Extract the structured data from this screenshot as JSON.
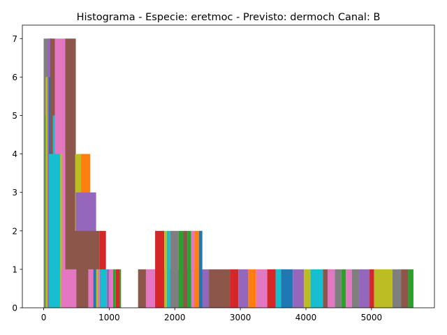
{
  "chart_data": {
    "type": "bar",
    "title": "Histograma - Especie: eretmoc - Previsto: dermoch Canal: B",
    "xlabel": "",
    "ylabel": "",
    "xlim": [
      -325,
      5960
    ],
    "ylim": [
      0,
      7.35
    ],
    "x_ticks": [
      {
        "value": 0,
        "label": "0"
      },
      {
        "value": 1000,
        "label": "1000"
      },
      {
        "value": 2000,
        "label": "2000"
      },
      {
        "value": 3000,
        "label": "3000"
      },
      {
        "value": 4000,
        "label": "4000"
      },
      {
        "value": 5000,
        "label": "5000"
      }
    ],
    "y_ticks": [
      {
        "value": 0,
        "label": "0"
      },
      {
        "value": 1,
        "label": "1"
      },
      {
        "value": 2,
        "label": "2"
      },
      {
        "value": 3,
        "label": "3"
      },
      {
        "value": 4,
        "label": "4"
      },
      {
        "value": 5,
        "label": "5"
      },
      {
        "value": 6,
        "label": "6"
      },
      {
        "value": 7,
        "label": "7"
      }
    ],
    "grid": false,
    "legend": "none",
    "colors": [
      "#1f77b4",
      "#ff7f0e",
      "#2ca02c",
      "#d62728",
      "#9467bd",
      "#8c564b",
      "#e377c2",
      "#7f7f7f",
      "#bcbd22",
      "#17becf"
    ],
    "bars": [
      {
        "x0": 0,
        "x1": 130,
        "y": 7,
        "color": "#7f7f7f"
      },
      {
        "x0": 20,
        "x1": 70,
        "y": 5,
        "color": "#2ca02c"
      },
      {
        "x0": 30,
        "x1": 120,
        "y": 6,
        "color": "#bcbd22"
      },
      {
        "x0": 60,
        "x1": 110,
        "y": 7,
        "color": "#9467bd"
      },
      {
        "x0": 80,
        "x1": 150,
        "y": 6,
        "color": "#1f77b4"
      },
      {
        "x0": 100,
        "x1": 175,
        "y": 7,
        "color": "#8c564b"
      },
      {
        "x0": 140,
        "x1": 175,
        "y": 5,
        "color": "#17becf"
      },
      {
        "x0": 170,
        "x1": 340,
        "y": 7,
        "color": "#e377c2"
      },
      {
        "x0": 330,
        "x1": 490,
        "y": 7,
        "color": "#8c564b"
      },
      {
        "x0": 480,
        "x1": 580,
        "y": 4,
        "color": "#bcbd22"
      },
      {
        "x0": 570,
        "x1": 710,
        "y": 4,
        "color": "#ff7f0e"
      },
      {
        "x0": 490,
        "x1": 800,
        "y": 3,
        "color": "#9467bd"
      },
      {
        "x0": 330,
        "x1": 850,
        "y": 2,
        "color": "#8c564b"
      },
      {
        "x0": 850,
        "x1": 950,
        "y": 2,
        "color": "#d62728"
      },
      {
        "x0": 80,
        "x1": 250,
        "y": 4,
        "color": "#17becf"
      },
      {
        "x0": 250,
        "x1": 280,
        "y": 4,
        "color": "#bcbd22"
      },
      {
        "x0": 270,
        "x1": 500,
        "y": 1,
        "color": "#e377c2"
      },
      {
        "x0": 500,
        "x1": 680,
        "y": 1,
        "color": "#8c564b"
      },
      {
        "x0": 680,
        "x1": 760,
        "y": 1,
        "color": "#e377c2"
      },
      {
        "x0": 760,
        "x1": 820,
        "y": 1,
        "color": "#1f77b4"
      },
      {
        "x0": 800,
        "x1": 830,
        "y": 1,
        "color": "#bcbd22"
      },
      {
        "x0": 830,
        "x1": 860,
        "y": 1,
        "color": "#e377c2"
      },
      {
        "x0": 860,
        "x1": 960,
        "y": 1,
        "color": "#17becf"
      },
      {
        "x0": 960,
        "x1": 1000,
        "y": 1,
        "color": "#9467bd"
      },
      {
        "x0": 1000,
        "x1": 1060,
        "y": 1,
        "color": "#e377c2"
      },
      {
        "x0": 1060,
        "x1": 1100,
        "y": 1,
        "color": "#2ca02c"
      },
      {
        "x0": 1100,
        "x1": 1160,
        "y": 1,
        "color": "#d62728"
      },
      {
        "x0": 1160,
        "x1": 1180,
        "y": 1,
        "color": "#2ca02c"
      },
      {
        "x0": 1440,
        "x1": 1560,
        "y": 1,
        "color": "#8c564b"
      },
      {
        "x0": 1560,
        "x1": 1780,
        "y": 1,
        "color": "#e377c2"
      },
      {
        "x0": 1780,
        "x1": 1840,
        "y": 1,
        "color": "#7f7f7f"
      },
      {
        "x0": 1840,
        "x1": 1900,
        "y": 1,
        "color": "#8c564b"
      },
      {
        "x0": 1900,
        "x1": 1990,
        "y": 1,
        "color": "#17becf"
      },
      {
        "x0": 1990,
        "x1": 2040,
        "y": 1,
        "color": "#9467bd"
      },
      {
        "x0": 2040,
        "x1": 2100,
        "y": 1,
        "color": "#1f77b4"
      },
      {
        "x0": 2100,
        "x1": 2160,
        "y": 1,
        "color": "#e377c2"
      },
      {
        "x0": 2160,
        "x1": 2290,
        "y": 1,
        "color": "#17becf"
      },
      {
        "x0": 2290,
        "x1": 2330,
        "y": 1,
        "color": "#1f77b4"
      },
      {
        "x0": 2330,
        "x1": 2390,
        "y": 1,
        "color": "#8c564b"
      },
      {
        "x0": 2390,
        "x1": 2520,
        "y": 1,
        "color": "#9467bd"
      },
      {
        "x0": 2520,
        "x1": 2840,
        "y": 1,
        "color": "#8c564b"
      },
      {
        "x0": 2840,
        "x1": 2970,
        "y": 1,
        "color": "#d62728"
      },
      {
        "x0": 2970,
        "x1": 3120,
        "y": 1,
        "color": "#9467bd"
      },
      {
        "x0": 3120,
        "x1": 3240,
        "y": 1,
        "color": "#ff7f0e"
      },
      {
        "x0": 3240,
        "x1": 3410,
        "y": 1,
        "color": "#e377c2"
      },
      {
        "x0": 3410,
        "x1": 3540,
        "y": 1,
        "color": "#d62728"
      },
      {
        "x0": 3540,
        "x1": 3620,
        "y": 1,
        "color": "#17becf"
      },
      {
        "x0": 3620,
        "x1": 3800,
        "y": 1,
        "color": "#1f77b4"
      },
      {
        "x0": 3800,
        "x1": 3970,
        "y": 1,
        "color": "#9467bd"
      },
      {
        "x0": 3970,
        "x1": 4070,
        "y": 1,
        "color": "#bcbd22"
      },
      {
        "x0": 4070,
        "x1": 4260,
        "y": 1,
        "color": "#17becf"
      },
      {
        "x0": 4260,
        "x1": 4330,
        "y": 1,
        "color": "#8c564b"
      },
      {
        "x0": 4330,
        "x1": 4440,
        "y": 1,
        "color": "#e377c2"
      },
      {
        "x0": 4440,
        "x1": 4540,
        "y": 1,
        "color": "#7f7f7f"
      },
      {
        "x0": 4540,
        "x1": 4610,
        "y": 1,
        "color": "#2ca02c"
      },
      {
        "x0": 4610,
        "x1": 4700,
        "y": 1,
        "color": "#e377c2"
      },
      {
        "x0": 4700,
        "x1": 4810,
        "y": 1,
        "color": "#7f7f7f"
      },
      {
        "x0": 4810,
        "x1": 4970,
        "y": 1,
        "color": "#9467bd"
      },
      {
        "x0": 4970,
        "x1": 5040,
        "y": 1,
        "color": "#d62728"
      },
      {
        "x0": 5040,
        "x1": 5320,
        "y": 1,
        "color": "#bcbd22"
      },
      {
        "x0": 5320,
        "x1": 5450,
        "y": 1,
        "color": "#7f7f7f"
      },
      {
        "x0": 5450,
        "x1": 5560,
        "y": 1,
        "color": "#8c564b"
      },
      {
        "x0": 5560,
        "x1": 5640,
        "y": 1,
        "color": "#2ca02c"
      },
      {
        "x0": 1700,
        "x1": 1840,
        "y": 2,
        "color": "#d62728"
      },
      {
        "x0": 1840,
        "x1": 1880,
        "y": 2,
        "color": "#bcbd22"
      },
      {
        "x0": 1880,
        "x1": 1930,
        "y": 2,
        "color": "#17becf"
      },
      {
        "x0": 1930,
        "x1": 2060,
        "y": 2,
        "color": "#7f7f7f"
      },
      {
        "x0": 2060,
        "x1": 2130,
        "y": 2,
        "color": "#2ca02c"
      },
      {
        "x0": 2130,
        "x1": 2190,
        "y": 2,
        "color": "#8c564b"
      },
      {
        "x0": 2190,
        "x1": 2250,
        "y": 2,
        "color": "#2ca02c"
      },
      {
        "x0": 2250,
        "x1": 2300,
        "y": 2,
        "color": "#e377c2"
      },
      {
        "x0": 2300,
        "x1": 2370,
        "y": 2,
        "color": "#ff7f0e"
      },
      {
        "x0": 2370,
        "x1": 2420,
        "y": 2,
        "color": "#1f77b4"
      }
    ]
  }
}
